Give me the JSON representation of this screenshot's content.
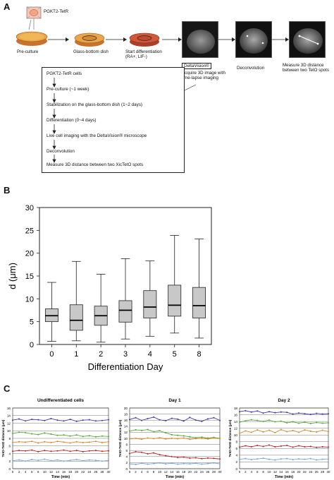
{
  "panel_a": {
    "letter": "A",
    "cell_label": "PGKT2-TetR",
    "steps_top": [
      {
        "label": "Pre-culture"
      },
      {
        "label": "Glass-bottom dish"
      },
      {
        "label": "Start differentiation\n(RA+, LIF-)"
      }
    ],
    "deltavision_box": "DeltaVision®",
    "acquire_label": "Acquire 3D image with\ntime-lapse imaging",
    "deconvolution_label": "Deconvolution",
    "measure_label": "Measure 3D distance\nbetween two TetO spots",
    "flow": [
      "PGKT2-TetR cells",
      "Pre-culture (~1 week)",
      "Stabilization on the glass-bottom dish (1~2 days)",
      "Differentiation (0~4 days)",
      "Live cell imaging with the DeltaVision® microscope",
      "Deconvolution",
      "Measure 3D distance between two XicTetO spots"
    ]
  },
  "panel_b": {
    "letter": "B",
    "chart_data": {
      "type": "box",
      "categories": [
        "0",
        "1",
        "2",
        "3",
        "4",
        "5",
        "8"
      ],
      "boxes": [
        {
          "min": 0.7,
          "q1": 5.0,
          "median": 6.3,
          "q3": 7.8,
          "max": 13.6
        },
        {
          "min": 0.8,
          "q1": 3.1,
          "median": 5.3,
          "q3": 8.7,
          "max": 18.2
        },
        {
          "min": 0.5,
          "q1": 4.2,
          "median": 6.3,
          "q3": 8.4,
          "max": 15.4
        },
        {
          "min": 1.2,
          "q1": 4.9,
          "median": 7.5,
          "q3": 9.6,
          "max": 18.8
        },
        {
          "min": 1.8,
          "q1": 5.8,
          "median": 8.2,
          "q3": 11.8,
          "max": 18.3
        },
        {
          "min": 2.5,
          "q1": 6.2,
          "median": 8.6,
          "q3": 13.0,
          "max": 23.9
        },
        {
          "min": 1.4,
          "q1": 5.8,
          "median": 8.5,
          "q3": 12.5,
          "max": 23.1
        }
      ],
      "xlabel": "Differentiation Day",
      "ylabel": "d (μm)",
      "yticks": [
        "0",
        "5",
        "10",
        "15",
        "20",
        "25",
        "30"
      ],
      "ylim": [
        0,
        30
      ],
      "box_color": "#c8c8c8"
    }
  },
  "panel_c": {
    "letter": "C",
    "chart_data": [
      {
        "type": "line",
        "title": "Undifferentiated cells",
        "xlabel": "Time (min)",
        "ylabel": "TetO-TetO distance (μm)",
        "xticks": [
          "0",
          "2",
          "4",
          "6",
          "8",
          "10",
          "12",
          "14",
          "16",
          "18",
          "20",
          "22",
          "24",
          "26",
          "28",
          "30"
        ],
        "yticks": [
          "0",
          "2",
          "4",
          "6",
          "8",
          "10",
          "12",
          "14",
          "16"
        ],
        "ylim": [
          0,
          16
        ],
        "series": [
          {
            "color": "#4b3aa8",
            "values": [
              12.8,
              13.1,
              12.6,
              13.0,
              12.9,
              12.7,
              13.2,
              12.8,
              12.6,
              13.0,
              12.5,
              12.8,
              12.9,
              12.6,
              12.7,
              12.9
            ]
          },
          {
            "color": "#5aa83a",
            "values": [
              9.3,
              9.6,
              9.5,
              9.2,
              9.0,
              9.4,
              9.1,
              8.8,
              8.9,
              8.6,
              8.9,
              8.5,
              8.7,
              8.4,
              8.6,
              8.5
            ]
          },
          {
            "color": "#d98a2b",
            "values": [
              6.9,
              7.1,
              7.0,
              7.2,
              6.8,
              7.1,
              6.9,
              7.2,
              7.0,
              6.8,
              7.1,
              6.9,
              7.0,
              7.2,
              6.9,
              7.1
            ]
          },
          {
            "color": "#b8282a",
            "values": [
              4.6,
              4.8,
              4.7,
              4.9,
              4.5,
              4.8,
              4.6,
              4.7,
              4.9,
              4.6,
              4.8,
              4.5,
              4.7,
              4.8,
              4.6,
              4.7
            ]
          },
          {
            "color": "#7ba6d6",
            "values": [
              2.1,
              2.3,
              2.0,
              2.4,
              2.2,
              2.5,
              2.1,
              2.3,
              2.0,
              2.2,
              2.4,
              2.1,
              2.3,
              2.2,
              2.0,
              2.2
            ]
          }
        ]
      },
      {
        "type": "line",
        "title": "Day 1",
        "xlabel": "Time (min)",
        "ylabel": "TetO-TetO distance (μm)",
        "xticks": [
          "0",
          "2",
          "4",
          "6",
          "8",
          "10",
          "12",
          "14",
          "16",
          "18",
          "20",
          "22",
          "24",
          "26",
          "28",
          "30"
        ],
        "yticks": [
          "0",
          "2",
          "4",
          "6",
          "8",
          "10",
          "12",
          "14",
          "16",
          "18",
          "20"
        ],
        "ylim": [
          0,
          20
        ],
        "series": [
          {
            "color": "#4b3aa8",
            "values": [
              16.2,
              16.8,
              15.9,
              16.5,
              17.0,
              16.1,
              15.8,
              16.6,
              16.3,
              15.7,
              16.9,
              16.0,
              15.6,
              16.4,
              16.8,
              15.9
            ]
          },
          {
            "color": "#5aa83a",
            "values": [
              12.4,
              12.8,
              12.6,
              12.9,
              12.2,
              12.5,
              11.8,
              11.2,
              11.0,
              10.8,
              10.5,
              10.2,
              10.4,
              10.1,
              10.3,
              10.0
            ]
          },
          {
            "color": "#d98a2b",
            "values": [
              9.8,
              10.0,
              9.7,
              10.1,
              9.9,
              10.2,
              9.8,
              10.0,
              9.9,
              10.1,
              9.7,
              9.9,
              10.0,
              9.8,
              10.1,
              9.9
            ]
          },
          {
            "color": "#b8282a",
            "values": [
              5.0,
              5.6,
              5.4,
              4.9,
              5.2,
              4.6,
              4.3,
              4.0,
              3.7,
              3.8,
              3.5,
              3.6,
              3.3,
              3.5,
              3.4,
              3.2
            ]
          },
          {
            "color": "#7ba6d6",
            "values": [
              1.6,
              1.4,
              1.8,
              1.5,
              1.7,
              1.9,
              1.6,
              1.8,
              1.5,
              1.7,
              1.6,
              1.8,
              1.5,
              1.7,
              1.9,
              1.6
            ]
          }
        ]
      },
      {
        "type": "line",
        "title": "Day 2",
        "xlabel": "Time (min)",
        "ylabel": "TetO-TetO distance (μm)",
        "xticks": [
          "0",
          "2",
          "4",
          "6",
          "8",
          "10",
          "12",
          "14",
          "16",
          "18",
          "20",
          "22",
          "24",
          "26",
          "28",
          "30"
        ],
        "yticks": [
          "0",
          "2",
          "4",
          "6",
          "8",
          "10",
          "12",
          "14",
          "16",
          "18"
        ],
        "ylim": [
          0,
          18
        ],
        "series": [
          {
            "color": "#4b3aa8",
            "values": [
              16.9,
              17.2,
              16.8,
              17.1,
              16.5,
              16.9,
              16.6,
              16.8,
              16.7,
              16.2,
              16.5,
              16.3,
              16.1,
              16.4,
              16.2,
              16.3
            ]
          },
          {
            "color": "#5aa83a",
            "values": [
              13.8,
              14.2,
              14.5,
              14.3,
              14.0,
              14.4,
              13.9,
              14.1,
              13.6,
              13.9,
              13.5,
              13.8,
              13.4,
              13.7,
              13.5,
              13.6
            ]
          },
          {
            "color": "#d98a2b",
            "values": [
              10.5,
              11.2,
              10.8,
              11.5,
              10.9,
              11.4,
              10.7,
              11.6,
              11.0,
              11.3,
              10.8,
              11.5,
              11.1,
              10.9,
              11.4,
              11.0
            ]
          },
          {
            "color": "#b8282a",
            "values": [
              6.4,
              6.8,
              6.5,
              6.9,
              6.6,
              7.0,
              6.5,
              6.7,
              6.9,
              6.4,
              6.8,
              6.5,
              6.6,
              6.3,
              6.5,
              6.4
            ]
          },
          {
            "color": "#7ba6d6",
            "values": [
              2.8,
              3.0,
              2.7,
              2.9,
              3.1,
              2.8,
              2.6,
              2.9,
              3.0,
              2.7,
              2.9,
              2.8,
              3.0,
              2.6,
              2.8,
              2.9
            ]
          }
        ]
      }
    ]
  }
}
